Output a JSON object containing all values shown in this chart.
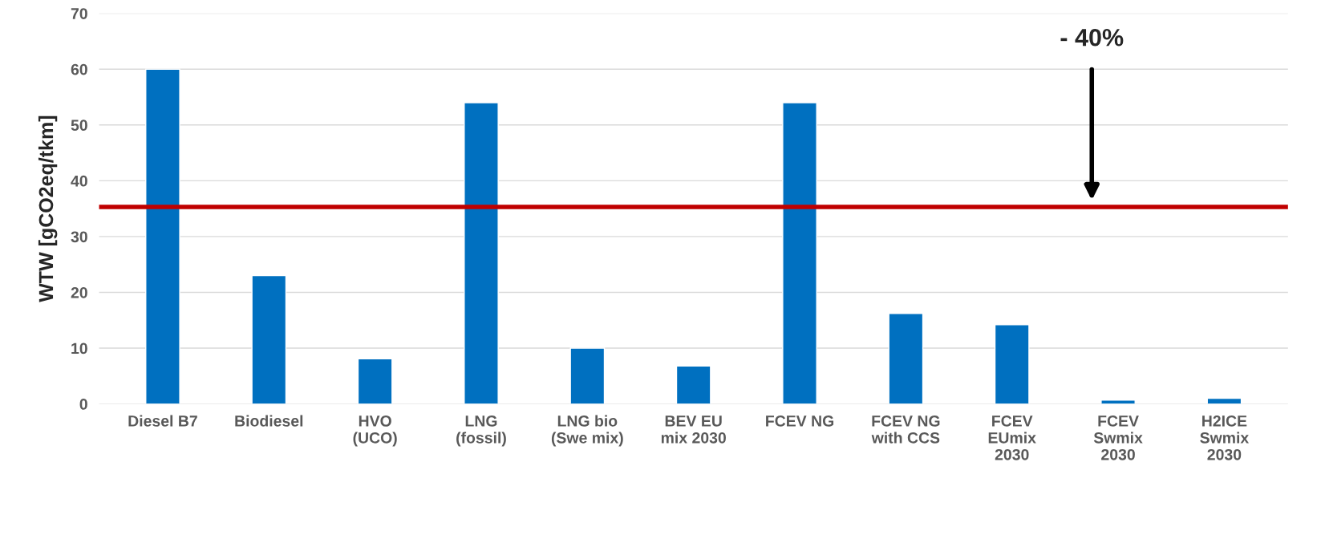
{
  "chart_data": {
    "type": "bar",
    "ylabel": "WTW [gCO2eq/tkm]",
    "categories": [
      "Diesel B7",
      "Biodiesel",
      "HVO\n(UCO)",
      "LNG\n(fossil)",
      "LNG bio\n(Swe mix)",
      "BEV EU\nmix 2030",
      "FCEV NG",
      "FCEV NG\nwith CCS",
      "FCEV\nEUmix\n2030",
      "FCEV\nSwmix\n2030",
      "H2ICE\nSwmix\n2030"
    ],
    "values": [
      60,
      23,
      8.1,
      54,
      10,
      6.8,
      54,
      16.2,
      14.2,
      0.7,
      1.0
    ],
    "color": "#0070c0",
    "ylim": [
      0,
      70
    ],
    "yticks": [
      0,
      10,
      20,
      30,
      40,
      50,
      60,
      70
    ],
    "grid": "y",
    "ref_lines": [
      {
        "axis": "y",
        "value": 35.3,
        "color": "#c00000"
      }
    ],
    "annotations": [
      "- 40%"
    ]
  }
}
